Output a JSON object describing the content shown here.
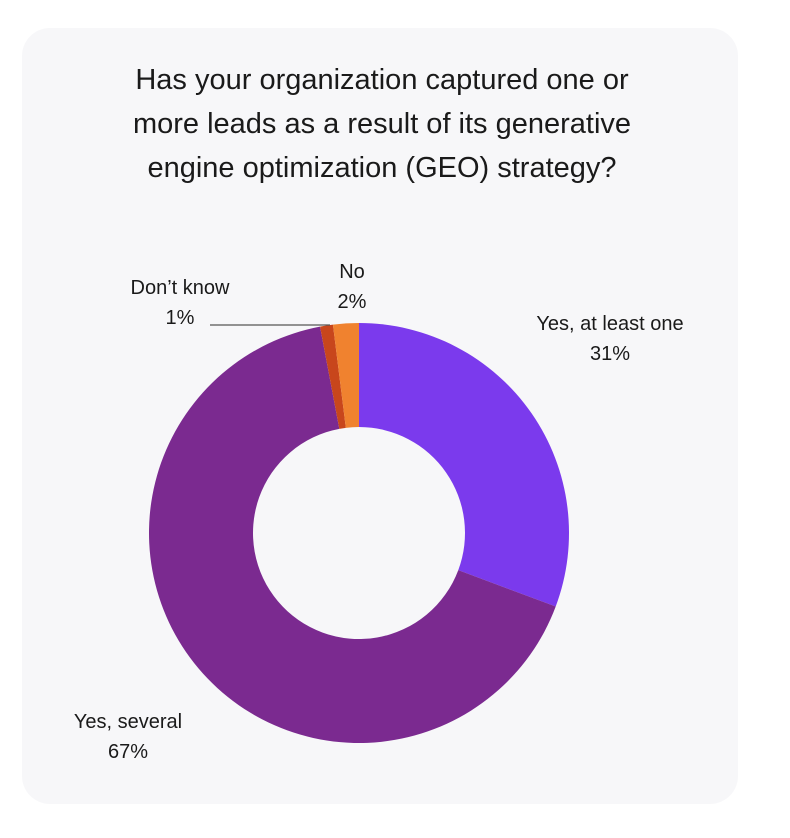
{
  "chart_data": {
    "type": "pie",
    "title_lines": [
      "Has your organization captured one or",
      "more leads as a result of its generative",
      "engine optimization (GEO) strategy?"
    ],
    "categories": [
      "Yes, at least one",
      "Yes, several",
      "Don’t know",
      "No"
    ],
    "values": [
      31,
      67,
      1,
      2
    ],
    "value_labels": [
      "31%",
      "67%",
      "1%",
      "2%"
    ],
    "colors": [
      "#7b3aed",
      "#7b2a90",
      "#c8461c",
      "#f0822f"
    ],
    "donut": true
  }
}
